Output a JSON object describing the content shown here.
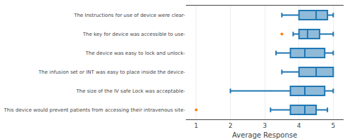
{
  "chart_data": {
    "type": "box",
    "orientation": "horizontal",
    "xlabel": "Average Response",
    "categories": [
      "The Instructions for use of device were clear-",
      "The key for device was accessible to use-",
      "The device was easy to lock and unlock-",
      "The infusion set or INT was easy to place inside the device-",
      "The size of the IV safe Lock was acceptable-",
      "This device would prevent patients from accessing their intravenous site-"
    ],
    "boxes": [
      {
        "whislo": 3.5,
        "q1": 4.0,
        "med": 4.5,
        "q3": 4.83,
        "whishi": 5.0,
        "fliers": []
      },
      {
        "whislo": 3.83,
        "q1": 4.0,
        "med": 4.25,
        "q3": 4.6,
        "whishi": 5.0,
        "fliers": [
          3.5
        ]
      },
      {
        "whislo": 3.33,
        "q1": 3.75,
        "med": 4.17,
        "q3": 4.75,
        "whishi": 5.0,
        "fliers": []
      },
      {
        "whislo": 3.5,
        "q1": 4.0,
        "med": 4.5,
        "q3": 5.0,
        "whishi": 5.0,
        "fliers": []
      },
      {
        "whislo": 2.0,
        "q1": 3.75,
        "med": 4.17,
        "q3": 4.75,
        "whishi": 5.0,
        "fliers": []
      },
      {
        "whislo": 3.17,
        "q1": 3.75,
        "med": 4.17,
        "q3": 4.5,
        "whishi": 4.83,
        "fliers": [
          1.0
        ]
      }
    ],
    "xlim": [
      0.7,
      5.3
    ],
    "xticks": [
      1,
      2,
      3,
      4,
      5
    ],
    "grid": true
  }
}
